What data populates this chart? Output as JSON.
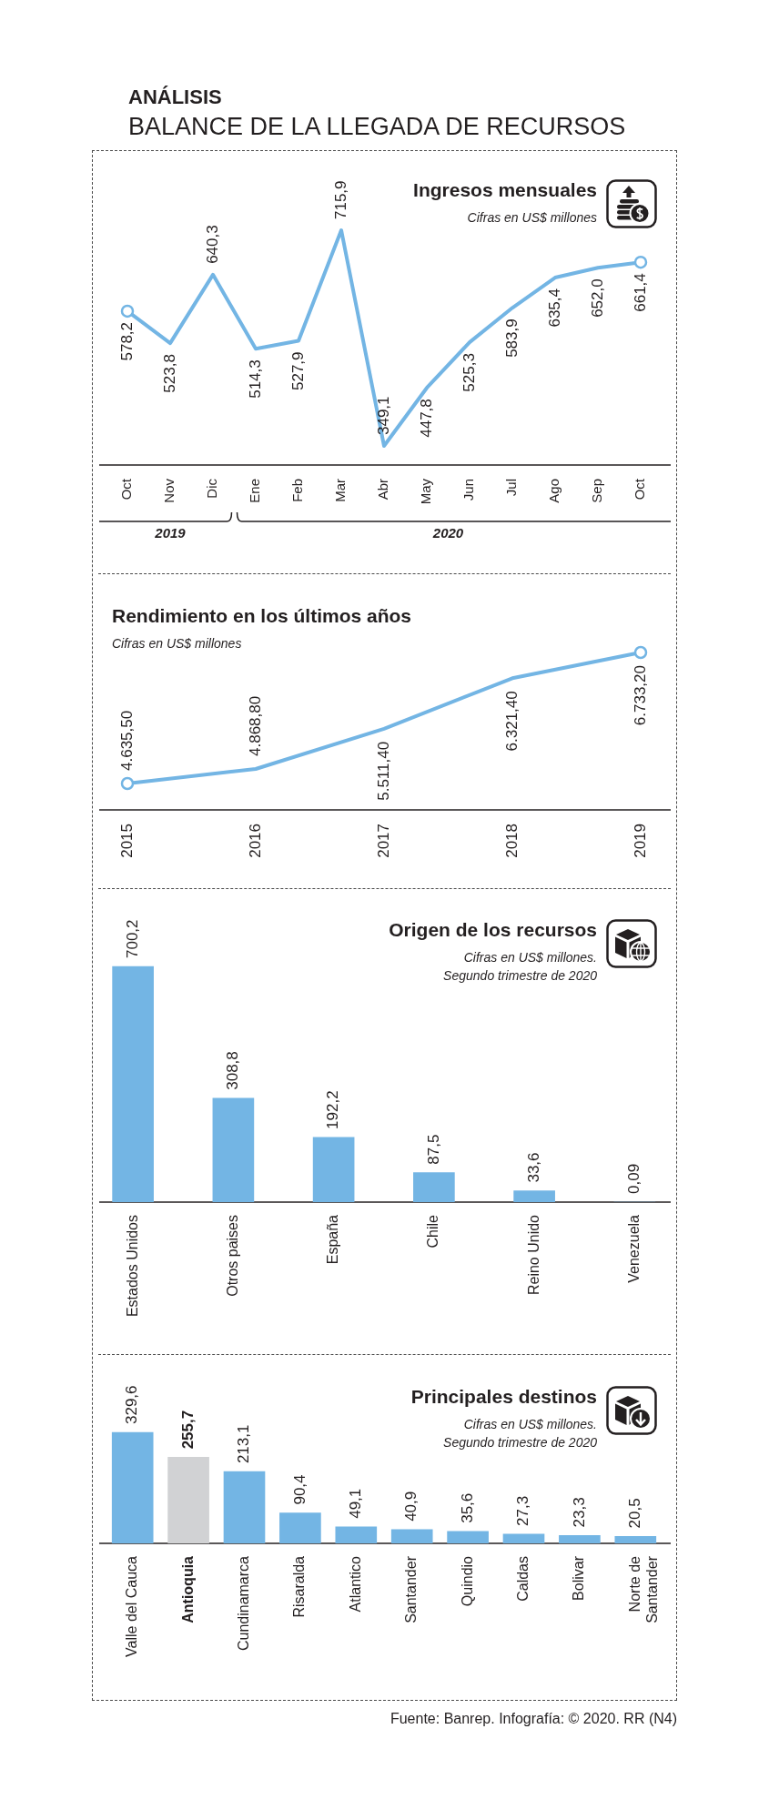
{
  "chart_data": [
    {
      "type": "other",
      "title": "BALANCE DE LA LLEGADA DE RECURSOS",
      "subtitle": "ANÁLISIS"
    },
    {
      "type": "line",
      "title": "Ingresos mensuales",
      "subtitle": "Cifras en US$ millones",
      "categories": [
        "Oct",
        "Nov",
        "Dic",
        "Ene",
        "Feb",
        "Mar",
        "Abr",
        "May",
        "Jun",
        "Jul",
        "Ago",
        "Sep",
        "Oct"
      ],
      "values": [
        578.2,
        523.8,
        640.3,
        514.3,
        527.9,
        715.9,
        349.1,
        447.8,
        525.3,
        583.9,
        635.4,
        652.0,
        661.4
      ],
      "value_labels": [
        "578,2",
        "523,8",
        "640,3",
        "514,3",
        "527,9",
        "715,9",
        "349,1",
        "447,8",
        "525,3",
        "583,9",
        "635,4",
        "652,0",
        "661,4"
      ],
      "color": "#73b5e4",
      "tick_labels": "x",
      "annotations": [
        "2019",
        "2020"
      ]
    },
    {
      "type": "line",
      "title": "Rendimiento en los últimos años",
      "subtitle": "Cifras en US$ millones",
      "categories": [
        "2015",
        "2016",
        "2017",
        "2018",
        "2019"
      ],
      "values": [
        4635.5,
        4868.8,
        5511.4,
        6321.4,
        6733.2
      ],
      "value_labels": [
        "4.635,50",
        "4.868,80",
        "5.511,40",
        "6.321,40",
        "6.733,20"
      ],
      "color": "#73b5e4",
      "tick_labels": "x"
    },
    {
      "type": "bar",
      "title": "Origen de los recursos",
      "subtitle": "Cifras en US$ millones. Segundo trimestre de 2020",
      "categories": [
        "Estados Unidos",
        "Otros paises",
        "España",
        "Chile",
        "Reino Unido",
        "Venezuela"
      ],
      "values": [
        700.2,
        308.8,
        192.2,
        87.5,
        33.6,
        0.09
      ],
      "value_labels": [
        "700,2",
        "308,8",
        "192,2",
        "87,5",
        "33,6",
        "0,09"
      ],
      "color": "#73b5e4",
      "tick_labels": "x"
    },
    {
      "type": "bar",
      "title": "Principales destinos",
      "subtitle": "Cifras en US$ millones. Segundo trimestre de 2020",
      "categories": [
        "Valle del Cauca",
        "Antioquia",
        "Cundinamarca",
        "Risaralda",
        "Atlantico",
        "Santander",
        "Quindio",
        "Caldas",
        "Bolivar",
        "Norte de Santander"
      ],
      "values": [
        329.6,
        255.7,
        213.1,
        90.4,
        49.1,
        40.9,
        35.6,
        27.3,
        23.3,
        20.5
      ],
      "value_labels": [
        "329,6",
        "255,7",
        "213,1",
        "90,4",
        "49,1",
        "40,9",
        "35,6",
        "27,3",
        "23,3",
        "20,5"
      ],
      "colors": [
        "#73b5e4",
        "#d1d2d4",
        "#73b5e4",
        "#73b5e4",
        "#73b5e4",
        "#73b5e4",
        "#73b5e4",
        "#73b5e4",
        "#73b5e4",
        "#73b5e4"
      ],
      "tick_labels": "x",
      "annotations": [
        "Fuente: Banrep. Infografía: © 2020. RR (N4)"
      ]
    }
  ]
}
